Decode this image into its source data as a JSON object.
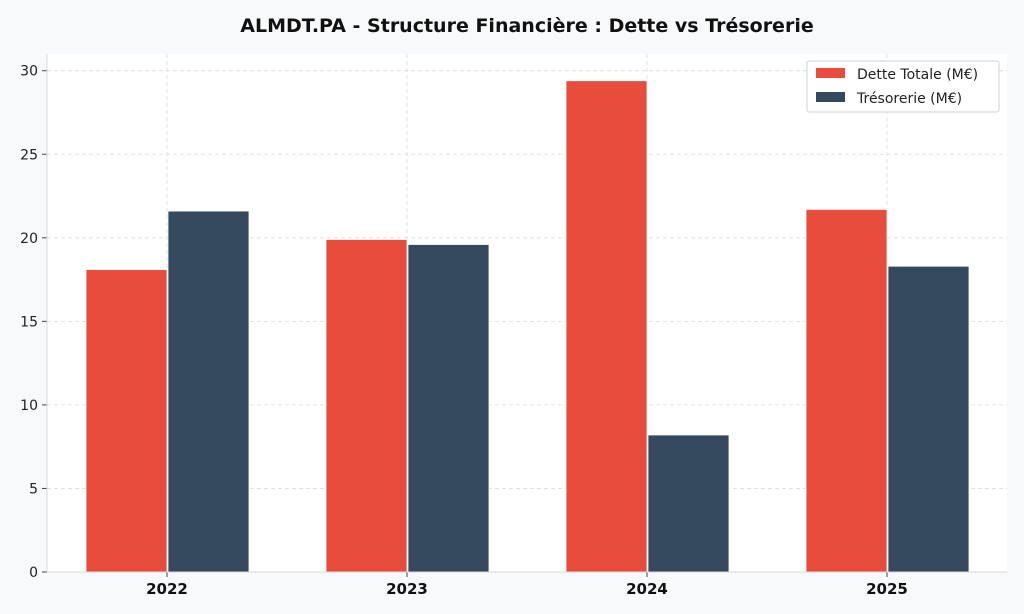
{
  "chart_data": {
    "type": "bar",
    "title": "ALMDT.PA - Structure Financière : Dette vs Trésorerie",
    "xlabel": "",
    "ylabel": "",
    "categories": [
      "2022",
      "2023",
      "2024",
      "2025"
    ],
    "series": [
      {
        "name": "Dette Totale (M€)",
        "color": "#e74c3c",
        "values": [
          18.1,
          19.9,
          29.4,
          21.7
        ]
      },
      {
        "name": "Trésorerie (M€)",
        "color": "#34495e",
        "values": [
          21.6,
          19.6,
          8.2,
          18.3
        ]
      }
    ],
    "ylim": [
      0,
      31
    ],
    "yticks": [
      "0",
      "5",
      "10",
      "15",
      "20",
      "25",
      "30"
    ],
    "grid": true,
    "legend": "top-right"
  }
}
